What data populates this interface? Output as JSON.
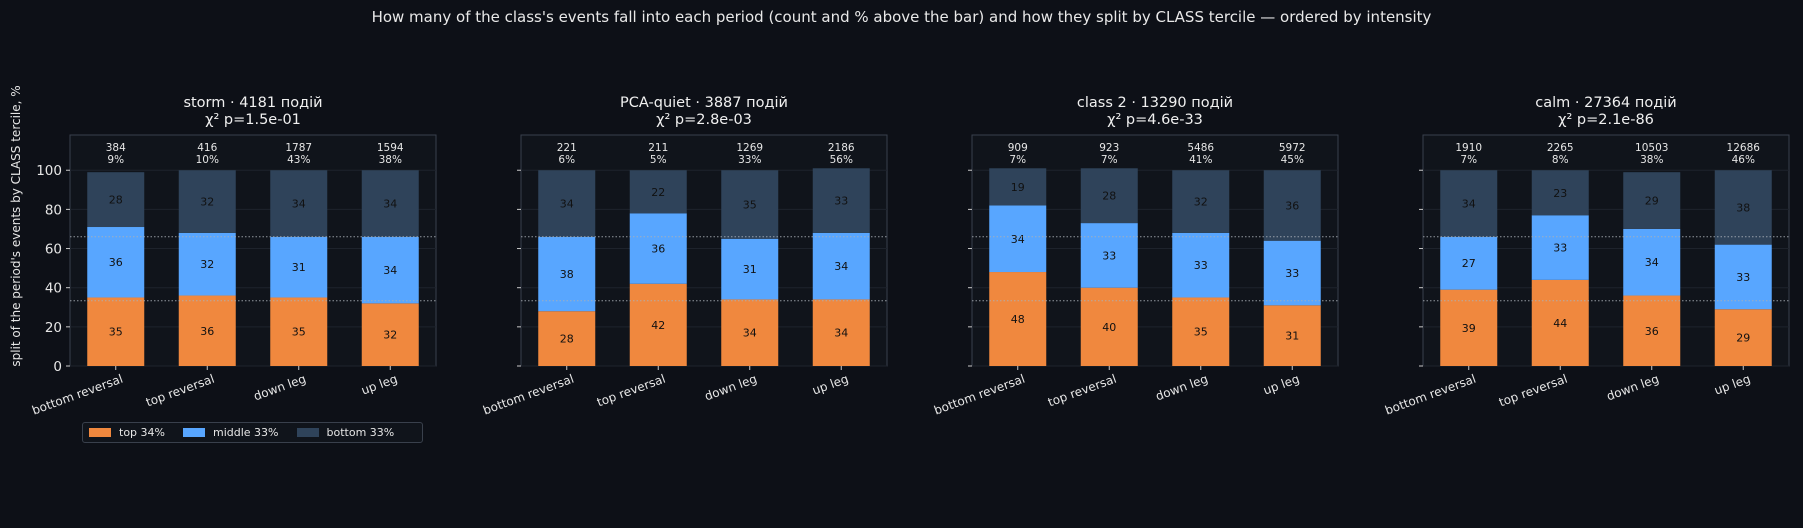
{
  "suptitle": "How many of the class's events fall into each period (count and % above the bar) and how they split by CLASS tercile — ordered by intensity",
  "ylabel": "split of the period's events by CLASS tercile, %",
  "legend": [
    {
      "label": "top 34%",
      "color": "#f0883e"
    },
    {
      "label": "middle 33%",
      "color": "#58a6ff"
    },
    {
      "label": "bottom 33%",
      "color": "#2f435a"
    }
  ],
  "colors": {
    "background": "#0d1017",
    "axes": "#10141b",
    "spine": "#39404c",
    "grid": "#1e232c",
    "reference_line": "#aab0b8"
  },
  "chart_data": [
    {
      "type": "bar",
      "stacked": true,
      "title_line1": "storm · 4181 подій",
      "title_line2": "χ² p=1.5e-01",
      "categories": [
        "bottom reversal",
        "top reversal",
        "down leg",
        "up leg"
      ],
      "yticks": [
        "0",
        "20",
        "40",
        "60",
        "80",
        "100"
      ],
      "ylim": [
        0,
        118
      ],
      "reference_lines": [
        33.3,
        66.0
      ],
      "counts": [
        "384",
        "416",
        "1787",
        "1594"
      ],
      "pcts": [
        "9%",
        "10%",
        "43%",
        "38%"
      ],
      "series": [
        {
          "name": "top 34%",
          "values": [
            35,
            36,
            35,
            32
          ]
        },
        {
          "name": "middle 33%",
          "values": [
            36,
            32,
            31,
            34
          ]
        },
        {
          "name": "bottom 33%",
          "values": [
            28,
            32,
            34,
            34
          ]
        }
      ]
    },
    {
      "type": "bar",
      "stacked": true,
      "title_line1": "PCA-quiet · 3887 подій",
      "title_line2": "χ² p=2.8e-03",
      "categories": [
        "bottom reversal",
        "top reversal",
        "down leg",
        "up leg"
      ],
      "yticks": [
        "0",
        "20",
        "40",
        "60",
        "80",
        "100"
      ],
      "ylim": [
        0,
        118
      ],
      "reference_lines": [
        33.3,
        66.0
      ],
      "counts": [
        "221",
        "211",
        "1269",
        "2186"
      ],
      "pcts": [
        "6%",
        "5%",
        "33%",
        "56%"
      ],
      "series": [
        {
          "name": "top 34%",
          "values": [
            28,
            42,
            34,
            34
          ]
        },
        {
          "name": "middle 33%",
          "values": [
            38,
            36,
            31,
            34
          ]
        },
        {
          "name": "bottom 33%",
          "values": [
            34,
            22,
            35,
            33
          ]
        }
      ]
    },
    {
      "type": "bar",
      "stacked": true,
      "title_line1": "class 2 · 13290 подій",
      "title_line2": "χ² p=4.6e-33",
      "categories": [
        "bottom reversal",
        "top reversal",
        "down leg",
        "up leg"
      ],
      "yticks": [
        "0",
        "20",
        "40",
        "60",
        "80",
        "100"
      ],
      "ylim": [
        0,
        118
      ],
      "reference_lines": [
        33.3,
        66.0
      ],
      "counts": [
        "909",
        "923",
        "5486",
        "5972"
      ],
      "pcts": [
        "7%",
        "7%",
        "41%",
        "45%"
      ],
      "series": [
        {
          "name": "top 34%",
          "values": [
            48,
            40,
            35,
            31
          ]
        },
        {
          "name": "middle 33%",
          "values": [
            34,
            33,
            33,
            33
          ]
        },
        {
          "name": "bottom 33%",
          "values": [
            19,
            28,
            32,
            36
          ]
        }
      ]
    },
    {
      "type": "bar",
      "stacked": true,
      "title_line1": "calm · 27364 подій",
      "title_line2": "χ² p=2.1e-86",
      "categories": [
        "bottom reversal",
        "top reversal",
        "down leg",
        "up leg"
      ],
      "yticks": [
        "0",
        "20",
        "40",
        "60",
        "80",
        "100"
      ],
      "ylim": [
        0,
        118
      ],
      "reference_lines": [
        33.3,
        66.0
      ],
      "counts": [
        "1910",
        "2265",
        "10503",
        "12686"
      ],
      "pcts": [
        "7%",
        "8%",
        "38%",
        "46%"
      ],
      "series": [
        {
          "name": "top 34%",
          "values": [
            39,
            44,
            36,
            29
          ]
        },
        {
          "name": "middle 33%",
          "values": [
            27,
            33,
            34,
            33
          ]
        },
        {
          "name": "bottom 33%",
          "values": [
            34,
            23,
            29,
            38
          ]
        }
      ]
    }
  ]
}
